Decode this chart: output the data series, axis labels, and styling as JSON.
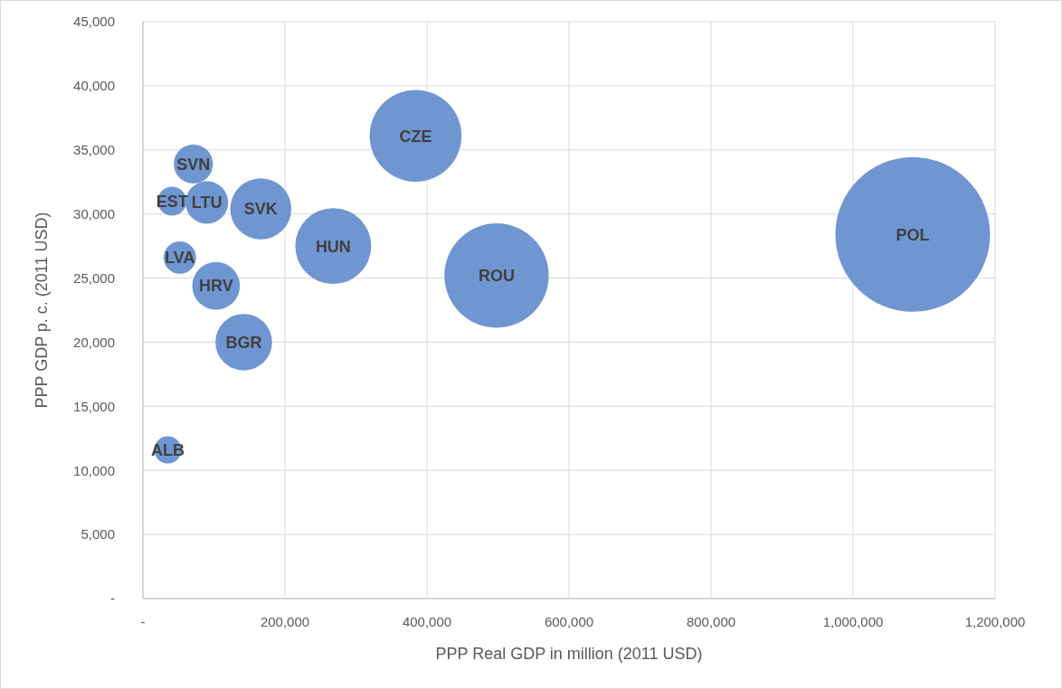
{
  "chart_data": {
    "type": "bubble",
    "xlabel": "PPP Real GDP in million (2011 USD)",
    "ylabel": "PPP GDP p. c. (2011 USD)",
    "xlim": [
      0,
      1200000
    ],
    "xticks": [
      {
        "value": 0,
        "label": "-"
      },
      {
        "value": 200000,
        "label": "200,000"
      },
      {
        "value": 400000,
        "label": "400,000"
      },
      {
        "value": 600000,
        "label": "600,000"
      },
      {
        "value": 800000,
        "label": "800,000"
      },
      {
        "value": 1000000,
        "label": "1,000,000"
      },
      {
        "value": 1200000,
        "label": "1,200,000"
      }
    ],
    "ylim": [
      0,
      45000
    ],
    "yticks": [
      {
        "value": 0,
        "label": "-"
      },
      {
        "value": 5000,
        "label": "5,000"
      },
      {
        "value": 10000,
        "label": "10,000"
      },
      {
        "value": 15000,
        "label": "15,000"
      },
      {
        "value": 20000,
        "label": "20,000"
      },
      {
        "value": 25000,
        "label": "25,000"
      },
      {
        "value": 30000,
        "label": "30,000"
      },
      {
        "value": 35000,
        "label": "35,000"
      },
      {
        "value": 40000,
        "label": "40,000"
      },
      {
        "value": 45000,
        "label": "45,000"
      }
    ],
    "grid": true,
    "series": [
      {
        "name": "ALB",
        "color": "#7096d1",
        "x": [
          35000
        ],
        "values": [
          11600
        ],
        "sizes": [
          0.031
        ]
      },
      {
        "name": "EST",
        "color": "#7096d1",
        "x": [
          41000
        ],
        "values": [
          31000
        ],
        "sizes": [
          0.035
        ]
      },
      {
        "name": "LVA",
        "color": "#7096d1",
        "x": [
          52000
        ],
        "values": [
          26600
        ],
        "sizes": [
          0.044
        ]
      },
      {
        "name": "SVN",
        "color": "#7096d1",
        "x": [
          71000
        ],
        "values": [
          33900
        ],
        "sizes": [
          0.064
        ]
      },
      {
        "name": "LTU",
        "color": "#7096d1",
        "x": [
          90000
        ],
        "values": [
          30900
        ],
        "sizes": [
          0.076
        ]
      },
      {
        "name": "HRV",
        "color": "#7096d1",
        "x": [
          103000
        ],
        "values": [
          24400
        ],
        "sizes": [
          0.095
        ]
      },
      {
        "name": "BGR",
        "color": "#7096d1",
        "x": [
          142000
        ],
        "values": [
          20000
        ],
        "sizes": [
          0.134
        ]
      },
      {
        "name": "SVK",
        "color": "#7096d1",
        "x": [
          166000
        ],
        "values": [
          30400
        ],
        "sizes": [
          0.156
        ]
      },
      {
        "name": "HUN",
        "color": "#7096d1",
        "x": [
          268000
        ],
        "values": [
          27500
        ],
        "sizes": [
          0.241
        ]
      },
      {
        "name": "CZE",
        "color": "#7096d1",
        "x": [
          384000
        ],
        "values": [
          36100
        ],
        "sizes": [
          0.353
        ]
      },
      {
        "name": "ROU",
        "color": "#7096d1",
        "x": [
          498000
        ],
        "values": [
          25200
        ],
        "sizes": [
          0.455
        ]
      },
      {
        "name": "POL",
        "color": "#7096d1",
        "x": [
          1084000
        ],
        "values": [
          28400
        ],
        "sizes": [
          1
        ]
      }
    ]
  }
}
